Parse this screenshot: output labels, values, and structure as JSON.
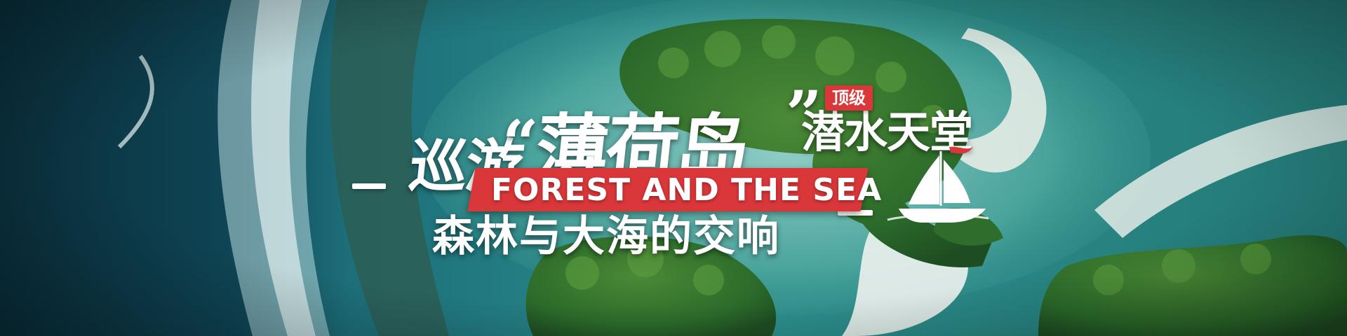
{
  "banner": {
    "title_prefix": "巡游",
    "quote_open": "“",
    "title_main": "薄荷岛",
    "quote_close": "”",
    "title_suffix": "潜水天堂",
    "badge": "顶级",
    "english_title": "FOREST AND THE SEA",
    "subtitle": "森林与大海的交响"
  },
  "colors": {
    "accent_red": "#d9373a",
    "deep_ocean": "#0b3a46",
    "lagoon": "#2f8f8a",
    "forest": "#2f6d2c",
    "sand": "#e6ece6"
  },
  "icons": {
    "sailboat": "sailboat-icon"
  }
}
